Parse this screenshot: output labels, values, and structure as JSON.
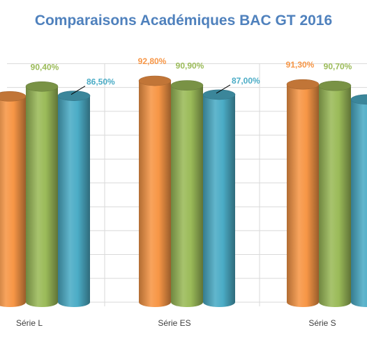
{
  "chart_data": {
    "type": "bar",
    "title": "Comparaisons Académiques BAC GT 2016",
    "categories": [
      "Série L",
      "Série ES",
      "Série S"
    ],
    "series": [
      {
        "color": "#f79646",
        "values": [
          86.3,
          92.8,
          91.3
        ],
        "labels": [
          "",
          "92,80%",
          "91,30%"
        ]
      },
      {
        "color": "#9bbb59",
        "values": [
          90.4,
          90.9,
          90.7
        ],
        "labels": [
          "90,40%",
          "90,90%",
          "90,70%"
        ]
      },
      {
        "color": "#4bacc6",
        "values": [
          86.5,
          87.0,
          85.0
        ],
        "labels": [
          "86,50%",
          "87,00%",
          ""
        ]
      }
    ],
    "ylim": [
      0,
      100
    ],
    "grid": true,
    "bar_shape": "cylinder",
    "legend": "none"
  },
  "colors": {
    "title": "#4f81bd",
    "grid": "#d9d9d9",
    "category_text": "#404040"
  }
}
